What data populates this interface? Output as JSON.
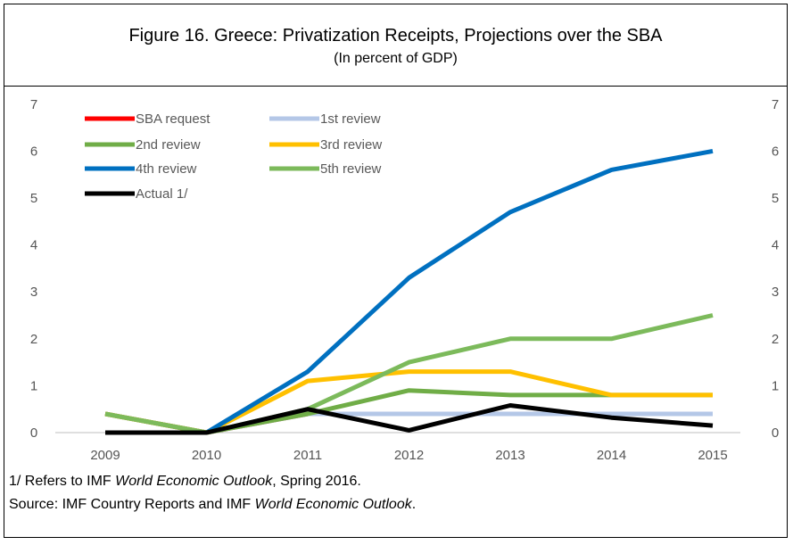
{
  "figure": {
    "title": "Figure 16. Greece: Privatization Receipts, Projections over the SBA",
    "subtitle": "(In percent of GDP)"
  },
  "chart_data": {
    "type": "line",
    "categories": [
      "2009",
      "2010",
      "2011",
      "2012",
      "2013",
      "2014",
      "2015"
    ],
    "ylim": [
      0,
      7
    ],
    "yticks": [
      "0",
      "1",
      "2",
      "3",
      "4",
      "5",
      "6",
      "7"
    ],
    "grid": false,
    "legend_position": "top-left",
    "series": [
      {
        "name": "SBA request",
        "color": "#ff0000",
        "values": [
          0.4,
          0.0,
          0.4,
          0.4,
          0.4,
          0.4,
          0.4
        ]
      },
      {
        "name": "1st review",
        "color": "#b4c7e7",
        "values": [
          0.4,
          0.0,
          0.4,
          0.4,
          0.4,
          0.4,
          0.4
        ]
      },
      {
        "name": "2nd review",
        "color": "#70ad47",
        "values": [
          0.4,
          0.0,
          0.4,
          0.9,
          0.8,
          0.8,
          0.8
        ]
      },
      {
        "name": "3rd review",
        "color": "#ffc000",
        "values": [
          0.4,
          0.0,
          1.1,
          1.3,
          1.3,
          0.8,
          0.8
        ]
      },
      {
        "name": "4th review",
        "color": "#0070c0",
        "values": [
          null,
          0.0,
          1.3,
          3.3,
          4.7,
          5.6,
          6.0
        ]
      },
      {
        "name": "5th review",
        "color": "#7cba5b",
        "values": [
          0.4,
          0.0,
          0.5,
          1.5,
          2.0,
          2.0,
          2.5
        ]
      },
      {
        "name": "Actual 1/",
        "color": "#000000",
        "values": [
          0.0,
          0.0,
          0.5,
          0.05,
          0.58,
          0.32,
          0.15
        ]
      }
    ]
  },
  "footnotes": {
    "note1_prefix": "1/ Refers to IMF ",
    "note1_italic": "World Economic Outlook",
    "note1_suffix": ", Spring 2016.",
    "source_prefix": "Source: IMF Country Reports and IMF ",
    "source_italic": "World Economic Outlook",
    "source_suffix": "."
  }
}
